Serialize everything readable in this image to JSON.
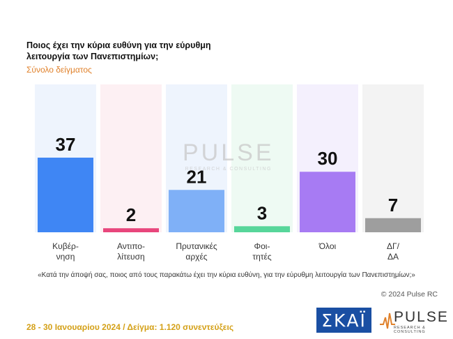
{
  "title": "Ποιος έχει την κύρια ευθύνη για την εύρυθμη λειτουργία των Πανεπιστημίων;",
  "subtitle": "Σύνολο δείγματος",
  "question": "«Κατά την άποψή σας, ποιος από τους παρακάτω έχει την κύρια ευθύνη, για την εύρυθμη λειτουργία των Πανεπιστημίων;»",
  "copyright": "© 2024 Pulse RC",
  "footer": "28 - 30 Ιανουαρίου 2024 / Δείγμα: 1.120 συνεντεύξεις",
  "watermark": {
    "name": "PULSE",
    "tagline": "RESEARCH & CONSULTING"
  },
  "logos": {
    "broadcaster": "ΣΚΑΪ",
    "pollster": "PULSE",
    "pollster_tagline": "RESEARCH & CONSULTING"
  },
  "chart_data": {
    "type": "bar",
    "categories": [
      [
        "Κυβέρ-",
        "νηση"
      ],
      [
        "Αντιπο-",
        "λίτευση"
      ],
      [
        "Πρυτανικές",
        "αρχές"
      ],
      [
        "Φοι-",
        "τητές"
      ],
      [
        "Όλοι"
      ],
      [
        "ΔΓ/",
        "ΔΑ"
      ]
    ],
    "values": [
      37,
      2,
      21,
      3,
      30,
      7
    ],
    "ylim": [
      0,
      45
    ],
    "grid": false,
    "bar_colors": [
      "#3f86f4",
      "#e8467c",
      "#7fb0f7",
      "#57d69a",
      "#a77bf3",
      "#9e9e9e"
    ],
    "background_colors": [
      "#eef4fd",
      "#fdf0f3",
      "#eef4fd",
      "#eefaf3",
      "#f4f0fd",
      "#f3f3f3"
    ]
  }
}
